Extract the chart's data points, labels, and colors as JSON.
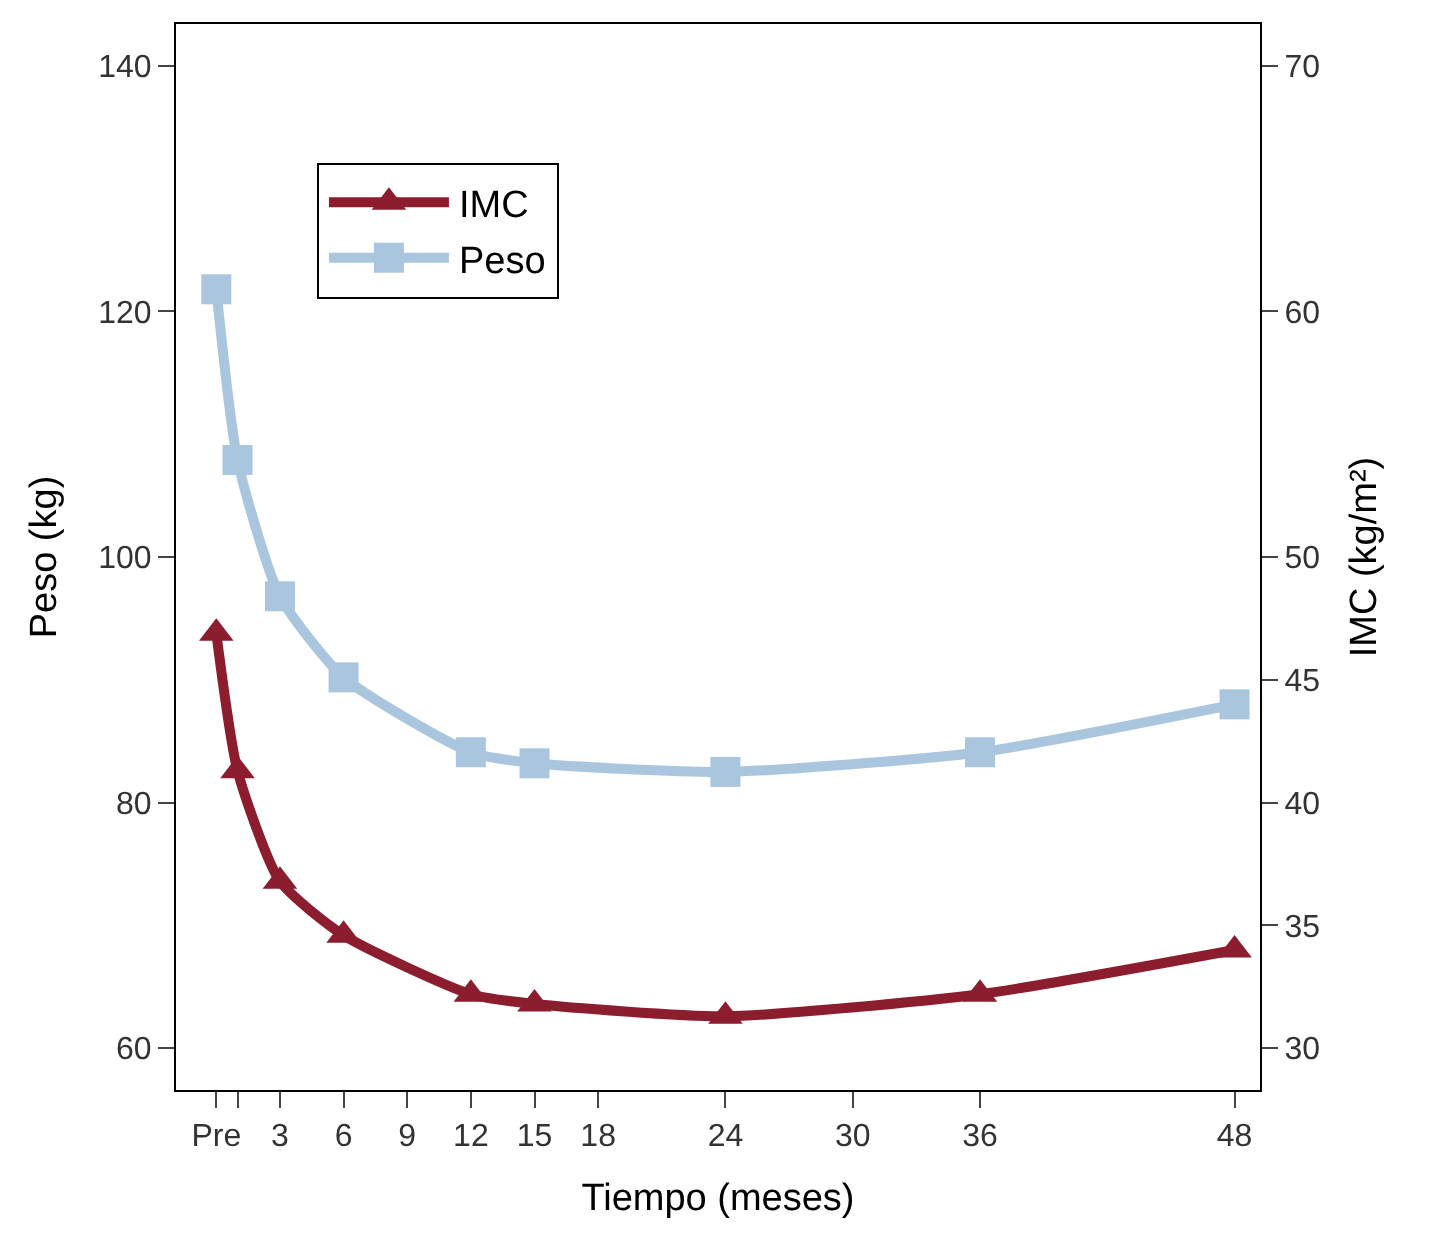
{
  "chart_data": {
    "type": "line",
    "xlabel": "Tiempo (meses)",
    "ylabel": "Peso (kg)",
    "y2label": "IMC (kg/m²)",
    "x": [
      0,
      1,
      3,
      6,
      12,
      15,
      24,
      36,
      48
    ],
    "xlim": [
      -1.9,
      49.2
    ],
    "xticks": [
      {
        "value": 0,
        "label": "Pre"
      },
      {
        "value": 1,
        "label": null
      },
      3,
      6,
      9,
      12,
      15,
      18,
      24,
      30,
      36,
      48
    ],
    "ylim": [
      56.6,
      143.4
    ],
    "yticks": [
      60,
      80,
      100,
      120,
      140
    ],
    "y2lim": [
      28.3,
      71.7
    ],
    "y2ticks": [
      30,
      35,
      40,
      45,
      50,
      60,
      70
    ],
    "legend": "top left",
    "line_style": "solid",
    "series": [
      {
        "name": "IMC",
        "color": "#8c1d2e",
        "marker": "triangle",
        "axis": "y2",
        "values": [
          46.9,
          41.3,
          36.8,
          34.6,
          32.2,
          31.8,
          31.3,
          32.2,
          34.0
        ]
      },
      {
        "name": "Peso",
        "color": "#a9c6de",
        "marker": "square",
        "values": [
          121.8,
          107.9,
          96.8,
          90.2,
          84.1,
          83.2,
          82.5,
          84.1,
          88.0
        ]
      }
    ]
  }
}
